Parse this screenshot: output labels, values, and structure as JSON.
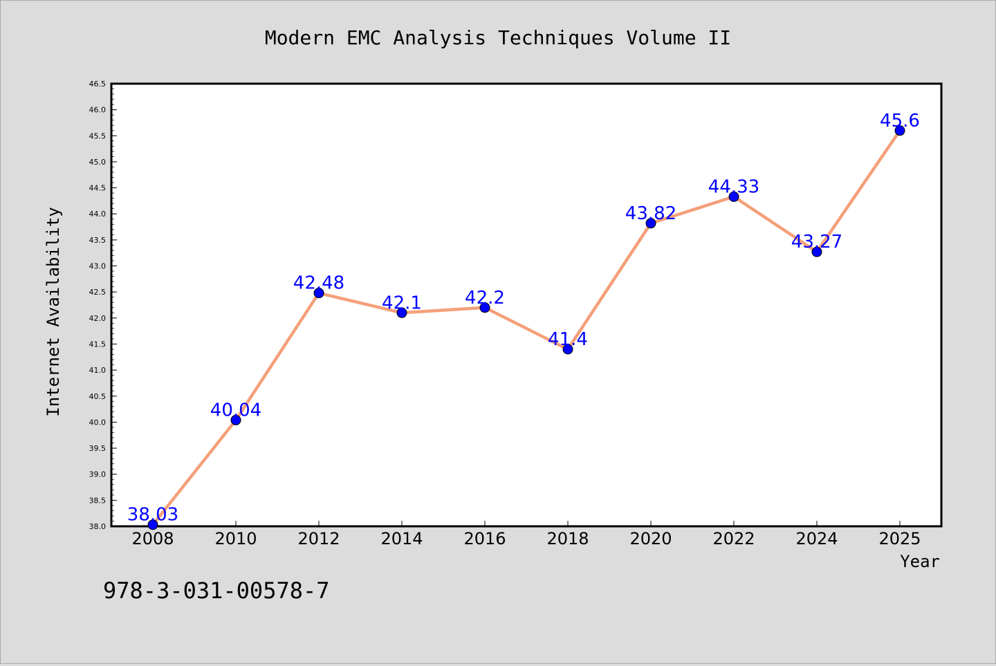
{
  "chart_data": {
    "type": "line",
    "title": "Modern EMC Analysis Techniques Volume II",
    "xlabel": "Year",
    "ylabel": "Internet Availability",
    "x": [
      "2008",
      "2010",
      "2012",
      "2014",
      "2016",
      "2018",
      "2020",
      "2022",
      "2024",
      "2025"
    ],
    "values": [
      38.03,
      40.04,
      42.48,
      42.1,
      42.2,
      41.4,
      43.82,
      44.33,
      43.27,
      45.6
    ],
    "data_labels": [
      "38.03",
      "40.04",
      "42.48",
      "42.1",
      "42.2",
      "41.4",
      "43.82",
      "44.33",
      "43.27",
      "45.6"
    ],
    "ylim": [
      38.0,
      46.5
    ],
    "yticks": [
      "38.0",
      "38.5",
      "39.0",
      "39.5",
      "40.0",
      "40.5",
      "41.0",
      "41.5",
      "42.0",
      "42.5",
      "43.0",
      "43.5",
      "44.0",
      "44.5",
      "45.0",
      "45.5",
      "46.0",
      "46.5"
    ],
    "grid": false,
    "line_color": "#f4a07a",
    "marker_color": "#0000ff",
    "label_color": "#0000ff"
  },
  "footer_text": "978-3-031-00578-7"
}
